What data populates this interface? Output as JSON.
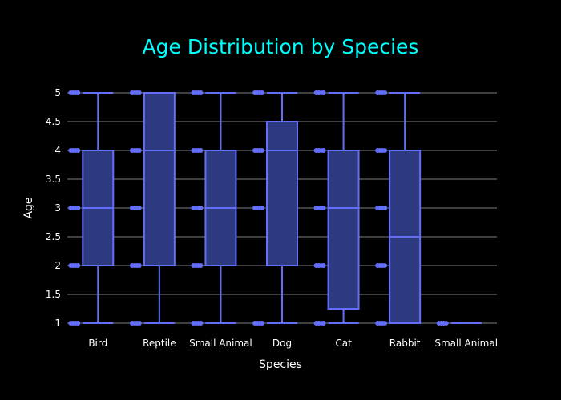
{
  "chart_data": {
    "type": "box",
    "title": "Age Distribution by Species",
    "xlabel": "Species",
    "ylabel": "Age",
    "ylim": [
      1,
      5
    ],
    "yticks": [
      "1",
      "1.5",
      "2",
      "2.5",
      "3",
      "3.5",
      "4",
      "4.5",
      "5"
    ],
    "grid": true,
    "categories": [
      "Bird",
      "Reptile",
      "Small Animal",
      "Dog",
      "Cat",
      "Rabbit",
      "Small Animal"
    ],
    "boxes": [
      {
        "category": "Bird",
        "min": 1,
        "q1": 2,
        "median": 3,
        "q3": 4,
        "max": 5,
        "points": [
          1,
          2,
          3,
          4,
          5
        ]
      },
      {
        "category": "Reptile",
        "min": 1,
        "q1": 2,
        "median": 4,
        "q3": 5,
        "max": 5,
        "points": [
          1,
          2,
          3,
          4,
          5
        ]
      },
      {
        "category": "Small Animal",
        "min": 1,
        "q1": 2,
        "median": 3,
        "q3": 4,
        "max": 5,
        "points": [
          1,
          2,
          3,
          4,
          5
        ]
      },
      {
        "category": "Dog",
        "min": 1,
        "q1": 2,
        "median": 4,
        "q3": 4.5,
        "max": 5,
        "points": [
          1,
          3,
          4,
          5
        ]
      },
      {
        "category": "Cat",
        "min": 1,
        "q1": 1.25,
        "median": 3,
        "q3": 4,
        "max": 5,
        "points": [
          1,
          2,
          3,
          4,
          5
        ]
      },
      {
        "category": "Rabbit",
        "min": 1,
        "q1": 1,
        "median": 2.5,
        "q3": 4,
        "max": 5,
        "points": [
          1,
          2,
          3,
          4,
          5
        ]
      },
      {
        "category": "Small Animal",
        "min": 1,
        "q1": 1,
        "median": 1,
        "q3": 1,
        "max": 1,
        "points": [
          1
        ]
      }
    ],
    "colors": {
      "background": "#000000",
      "title": "#00ffff",
      "box_fill": "#2e3a80",
      "box_line": "#636efa",
      "grid": "#808080",
      "text": "#ffffff"
    }
  }
}
